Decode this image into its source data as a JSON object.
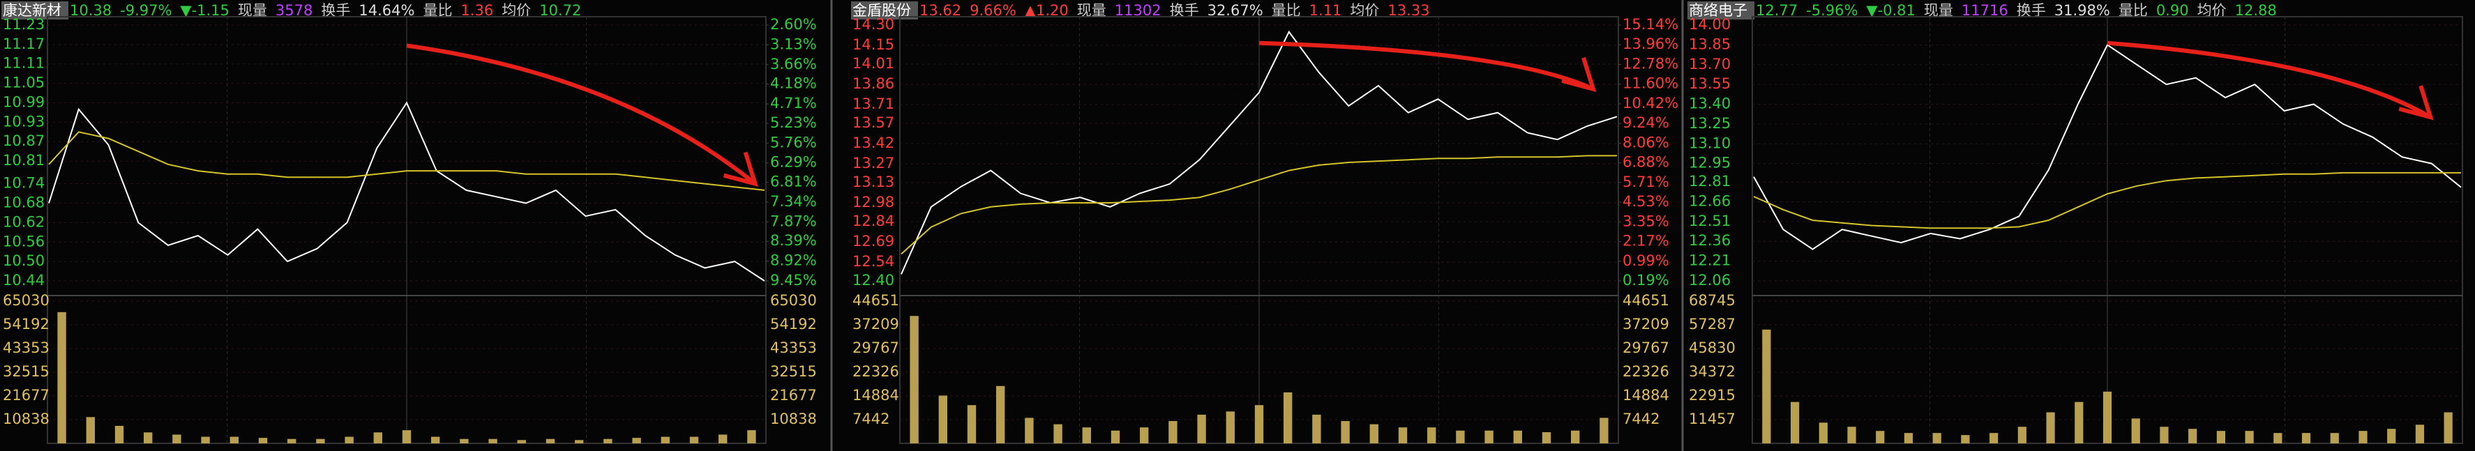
{
  "chart_data": [
    {
      "type": "line",
      "title": "康达新材",
      "header": [
        {
          "text": "10.38",
          "color": "#2ecc40"
        },
        {
          "text": "-9.97%",
          "color": "#2ecc40"
        },
        {
          "text": "▼-1.15",
          "color": "#2ecc40"
        },
        {
          "text": "现量",
          "color": "#cccccc"
        },
        {
          "text": "3578",
          "color": "#c040ff"
        },
        {
          "text": "换手",
          "color": "#cccccc"
        },
        {
          "text": "14.64%",
          "color": "#dddddd"
        },
        {
          "text": "量比",
          "color": "#cccccc"
        },
        {
          "text": "1.36",
          "color": "#ff3b3b"
        },
        {
          "text": "均价",
          "color": "#cccccc"
        },
        {
          "text": "10.72",
          "color": "#2ecc40"
        }
      ],
      "ylim": [
        10.44,
        11.23
      ],
      "yticks": [
        11.23,
        11.17,
        11.11,
        11.05,
        10.99,
        10.93,
        10.87,
        10.81,
        10.74,
        10.68,
        10.62,
        10.56,
        {
          "value": 10.5,
          "label": "10.50"
        },
        10.44
      ],
      "tick_colors": [
        "#2ecc40",
        "#2ecc40",
        "#2ecc40",
        "#2ecc40",
        "#2ecc40",
        "#2ecc40",
        "#2ecc40",
        "#2ecc40",
        "#2ecc40",
        "#2ecc40",
        "#2ecc40",
        "#2ecc40",
        "#2ecc40",
        "#2ecc40"
      ],
      "y2lim": [
        -9.45,
        -2.6
      ],
      "y2ticks": [
        {
          "value": -2.6,
          "label": "2.60%"
        },
        {
          "value": -3.13,
          "label": "3.13%"
        },
        {
          "value": -3.66,
          "label": "3.66%"
        },
        {
          "value": -4.18,
          "label": "4.18%"
        },
        {
          "value": -4.71,
          "label": "4.71%"
        },
        {
          "value": -5.23,
          "label": "5.23%"
        },
        {
          "value": -5.76,
          "label": "5.76%"
        },
        {
          "value": -6.29,
          "label": "6.29%"
        },
        {
          "value": -6.81,
          "label": "6.81%"
        },
        {
          "value": -7.34,
          "label": "7.34%"
        },
        {
          "value": -7.87,
          "label": "7.87%"
        },
        {
          "value": -8.39,
          "label": "8.39%"
        },
        {
          "value": -8.92,
          "label": "8.92%"
        },
        {
          "value": -9.45,
          "label": "9.45%"
        }
      ],
      "series": [
        {
          "color": "#ffffff",
          "values": [
            10.68,
            10.97,
            10.86,
            10.62,
            10.55,
            10.58,
            10.52,
            10.6,
            10.5,
            10.54,
            10.62,
            10.85,
            10.99,
            10.78,
            10.72,
            10.7,
            10.68,
            10.72,
            10.64,
            10.66,
            10.58,
            10.52,
            10.48,
            10.5,
            10.44
          ]
        },
        {
          "color": "#d4c42a",
          "values": [
            10.8,
            10.9,
            10.88,
            10.84,
            10.8,
            10.78,
            10.77,
            10.77,
            10.76,
            10.76,
            10.76,
            10.77,
            10.78,
            10.78,
            10.78,
            10.78,
            10.77,
            10.77,
            10.77,
            10.77,
            10.76,
            10.75,
            10.74,
            10.73,
            10.72
          ]
        }
      ],
      "volume": {
        "color": "#b8a050",
        "ylim": [
          0,
          65030
        ],
        "yticks": [
          65030,
          54192,
          43353,
          32515,
          21677,
          10838
        ],
        "values": [
          60000,
          12000,
          8000,
          5000,
          4000,
          3000,
          3000,
          2500,
          2000,
          2000,
          3000,
          5000,
          6000,
          3000,
          2000,
          2000,
          1500,
          2000,
          1500,
          2000,
          2500,
          3000,
          3000,
          4000,
          6000
        ]
      }
    },
    {
      "type": "line",
      "title": "金盾股份",
      "header": [
        {
          "text": "13.62",
          "color": "#ff3b3b"
        },
        {
          "text": "9.66%",
          "color": "#ff3b3b"
        },
        {
          "text": "▲1.20",
          "color": "#ff3b3b"
        },
        {
          "text": "现量",
          "color": "#cccccc"
        },
        {
          "text": "11302",
          "color": "#c040ff"
        },
        {
          "text": "换手",
          "color": "#cccccc"
        },
        {
          "text": "32.67%",
          "color": "#dddddd"
        },
        {
          "text": "量比",
          "color": "#cccccc"
        },
        {
          "text": "1.11",
          "color": "#ff3b3b"
        },
        {
          "text": "均价",
          "color": "#cccccc"
        },
        {
          "text": "13.33",
          "color": "#ff3b3b"
        }
      ],
      "ylim": [
        12.4,
        14.3
      ],
      "yticks": [
        {
          "value": 14.3,
          "label": "14.30"
        },
        14.15,
        14.01,
        13.86,
        13.71,
        13.57,
        13.42,
        13.27,
        13.13,
        12.98,
        12.84,
        12.69,
        12.54,
        {
          "value": 12.4,
          "label": "12.40"
        }
      ],
      "tick_colors": [
        "#ff3b3b",
        "#ff3b3b",
        "#ff3b3b",
        "#ff3b3b",
        "#ff3b3b",
        "#ff3b3b",
        "#ff3b3b",
        "#ff3b3b",
        "#ff3b3b",
        "#ff3b3b",
        "#ff3b3b",
        "#ff3b3b",
        "#ff3b3b",
        "#2ecc40"
      ],
      "y2lim": [
        -0.19,
        15.14
      ],
      "y2ticks": [
        {
          "value": 15.14,
          "label": "15.14%"
        },
        {
          "value": 13.96,
          "label": "13.96%"
        },
        {
          "value": 12.78,
          "label": "12.78%"
        },
        {
          "value": 11.6,
          "label": "11.60%"
        },
        {
          "value": 10.42,
          "label": "10.42%"
        },
        {
          "value": 9.24,
          "label": "9.24%"
        },
        {
          "value": 8.06,
          "label": "8.06%"
        },
        {
          "value": 6.88,
          "label": "6.88%"
        },
        {
          "value": 5.71,
          "label": "5.71%"
        },
        {
          "value": 4.53,
          "label": "4.53%"
        },
        {
          "value": 3.35,
          "label": "3.35%"
        },
        {
          "value": 2.17,
          "label": "2.17%"
        },
        {
          "value": 0.99,
          "label": "0.99%"
        },
        {
          "value": -0.19,
          "label": "0.19%"
        }
      ],
      "series": [
        {
          "color": "#ffffff",
          "values": [
            12.45,
            12.95,
            13.1,
            13.22,
            13.05,
            12.98,
            13.02,
            12.95,
            13.05,
            13.12,
            13.3,
            13.55,
            13.8,
            14.25,
            13.95,
            13.7,
            13.85,
            13.65,
            13.75,
            13.6,
            13.65,
            13.5,
            13.45,
            13.55,
            13.62
          ]
        },
        {
          "color": "#d4c42a",
          "values": [
            12.6,
            12.8,
            12.9,
            12.95,
            12.97,
            12.98,
            12.98,
            12.98,
            12.99,
            13,
            13.02,
            13.08,
            13.15,
            13.22,
            13.26,
            13.28,
            13.29,
            13.3,
            13.31,
            13.31,
            13.32,
            13.32,
            13.32,
            13.33,
            13.33
          ]
        }
      ],
      "volume": {
        "color": "#b8a050",
        "ylim": [
          0,
          44651
        ],
        "yticks": [
          44651,
          37209,
          29767,
          22326,
          14884,
          7442
        ],
        "values": [
          40000,
          15000,
          12000,
          18000,
          8000,
          6000,
          5000,
          4000,
          5000,
          7000,
          9000,
          10000,
          12000,
          16000,
          9000,
          7000,
          6000,
          5000,
          5000,
          4000,
          4000,
          4000,
          3500,
          4000,
          8000
        ]
      }
    },
    {
      "type": "line",
      "title": "商络电子",
      "header": [
        {
          "text": "12.77",
          "color": "#2ecc40"
        },
        {
          "text": "-5.96%",
          "color": "#2ecc40"
        },
        {
          "text": "▼-0.81",
          "color": "#2ecc40"
        },
        {
          "text": "现量",
          "color": "#cccccc"
        },
        {
          "text": "11716",
          "color": "#c040ff"
        },
        {
          "text": "换手",
          "color": "#cccccc"
        },
        {
          "text": "31.98%",
          "color": "#dddddd"
        },
        {
          "text": "量比",
          "color": "#cccccc"
        },
        {
          "text": "0.90",
          "color": "#2ecc40"
        },
        {
          "text": "均价",
          "color": "#cccccc"
        },
        {
          "text": "12.88",
          "color": "#2ecc40"
        }
      ],
      "ylim": [
        12.06,
        14
      ],
      "yticks": [
        {
          "value": 14,
          "label": "14.00"
        },
        13.85,
        {
          "value": 13.7,
          "label": "13.70"
        },
        13.55,
        {
          "value": 13.4,
          "label": "13.40"
        },
        13.25,
        {
          "value": 13.1,
          "label": "13.10"
        },
        12.95,
        12.81,
        12.66,
        12.51,
        12.36,
        12.21,
        12.06
      ],
      "tick_colors": [
        "#ff3b3b",
        "#ff3b3b",
        "#ff3b3b",
        "#ff3b3b",
        "#2ecc40",
        "#2ecc40",
        "#2ecc40",
        "#2ecc40",
        "#2ecc40",
        "#2ecc40",
        "#2ecc40",
        "#2ecc40",
        "#2ecc40",
        "#2ecc40"
      ],
      "series": [
        {
          "color": "#ffffff",
          "values": [
            12.85,
            12.45,
            12.3,
            12.45,
            12.4,
            12.35,
            12.42,
            12.38,
            12.45,
            12.55,
            12.9,
            13.4,
            13.85,
            13.7,
            13.55,
            13.6,
            13.45,
            13.55,
            13.35,
            13.4,
            13.25,
            13.15,
            13,
            12.95,
            12.77
          ]
        },
        {
          "color": "#d4c42a",
          "values": [
            12.7,
            12.6,
            12.52,
            12.5,
            12.48,
            12.47,
            12.46,
            12.46,
            12.46,
            12.47,
            12.52,
            12.62,
            12.72,
            12.78,
            12.82,
            12.84,
            12.85,
            12.86,
            12.87,
            12.87,
            12.88,
            12.88,
            12.88,
            12.88,
            12.88
          ]
        }
      ],
      "volume": {
        "color": "#b8a050",
        "ylim": [
          0,
          68745
        ],
        "yticks": [
          68745,
          57287,
          45830,
          34372,
          22915,
          11457
        ],
        "values": [
          55000,
          20000,
          10000,
          8000,
          6000,
          5000,
          5000,
          4000,
          5000,
          8000,
          15000,
          20000,
          25000,
          12000,
          8000,
          7000,
          6000,
          6000,
          5000,
          5000,
          5000,
          6000,
          7000,
          9000,
          15000
        ]
      }
    }
  ]
}
